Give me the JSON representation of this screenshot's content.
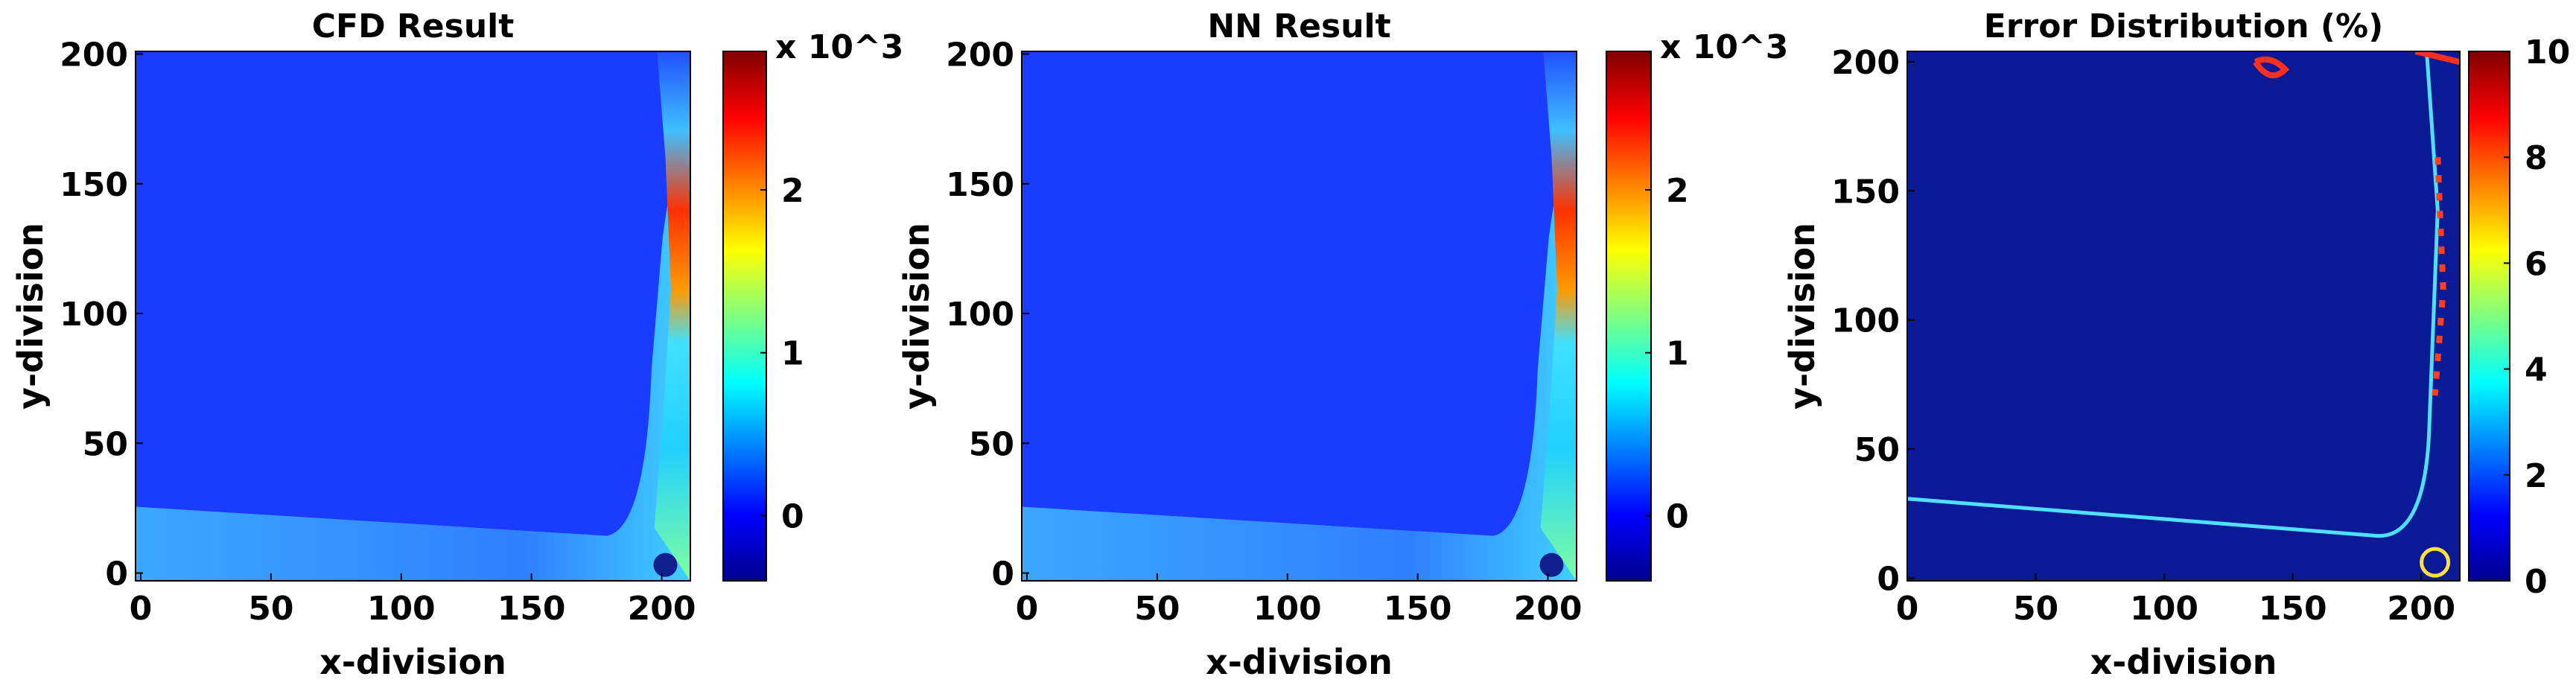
{
  "chart_data": [
    {
      "type": "heatmap",
      "title": "CFD Result",
      "x_label": "x-division",
      "y_label": "y-division",
      "xlim": [
        -2,
        211
      ],
      "ylim": [
        -3,
        201
      ],
      "xticks": [
        0,
        50,
        100,
        150,
        200
      ],
      "yticks": [
        0,
        50,
        100,
        150,
        200
      ],
      "colormap": "jet",
      "colorbar": {
        "label": "x 10^3",
        "lim": [
          -0.4,
          2.85
        ],
        "ticks": [
          0,
          1,
          2
        ]
      }
    },
    {
      "type": "heatmap",
      "title": "NN Result",
      "x_label": "x-division",
      "y_label": "y-division",
      "xlim": [
        -2,
        211
      ],
      "ylim": [
        -3,
        201
      ],
      "xticks": [
        0,
        50,
        100,
        150,
        200
      ],
      "yticks": [
        0,
        50,
        100,
        150,
        200
      ],
      "colormap": "jet",
      "colorbar": {
        "label": "x 10^3",
        "lim": [
          -0.4,
          2.85
        ],
        "ticks": [
          0,
          1,
          2
        ]
      }
    },
    {
      "type": "heatmap",
      "title": "Error Distribution (%)",
      "x_label": "x-division",
      "y_label": "y-division",
      "xlim": [
        0,
        215
      ],
      "ylim": [
        -1,
        204
      ],
      "xticks": [
        0,
        50,
        100,
        150,
        200
      ],
      "yticks": [
        0,
        50,
        100,
        150,
        200
      ],
      "colormap": "jet",
      "colorbar": {
        "lim": [
          0,
          10
        ],
        "ticks": [
          0,
          2,
          4,
          6,
          8,
          10
        ]
      }
    }
  ]
}
